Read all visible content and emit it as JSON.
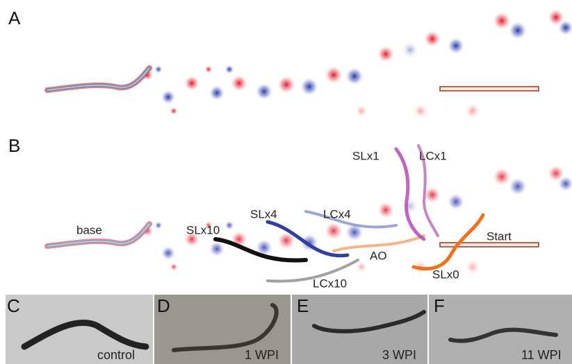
{
  "panel_a": {
    "label": "A"
  },
  "panel_b": {
    "label": "B",
    "annotations": [
      "base",
      "SLx10",
      "SLx4",
      "LCx4",
      "SLx1",
      "LCx1",
      "Start",
      "AO",
      "SLx0",
      "LCx10"
    ]
  },
  "photos": [
    {
      "label": "C",
      "caption": "control"
    },
    {
      "label": "D",
      "caption": "1 WPI"
    },
    {
      "label": "E",
      "caption": "3 WPI"
    },
    {
      "label": "F",
      "caption": "11 WPI"
    }
  ]
}
